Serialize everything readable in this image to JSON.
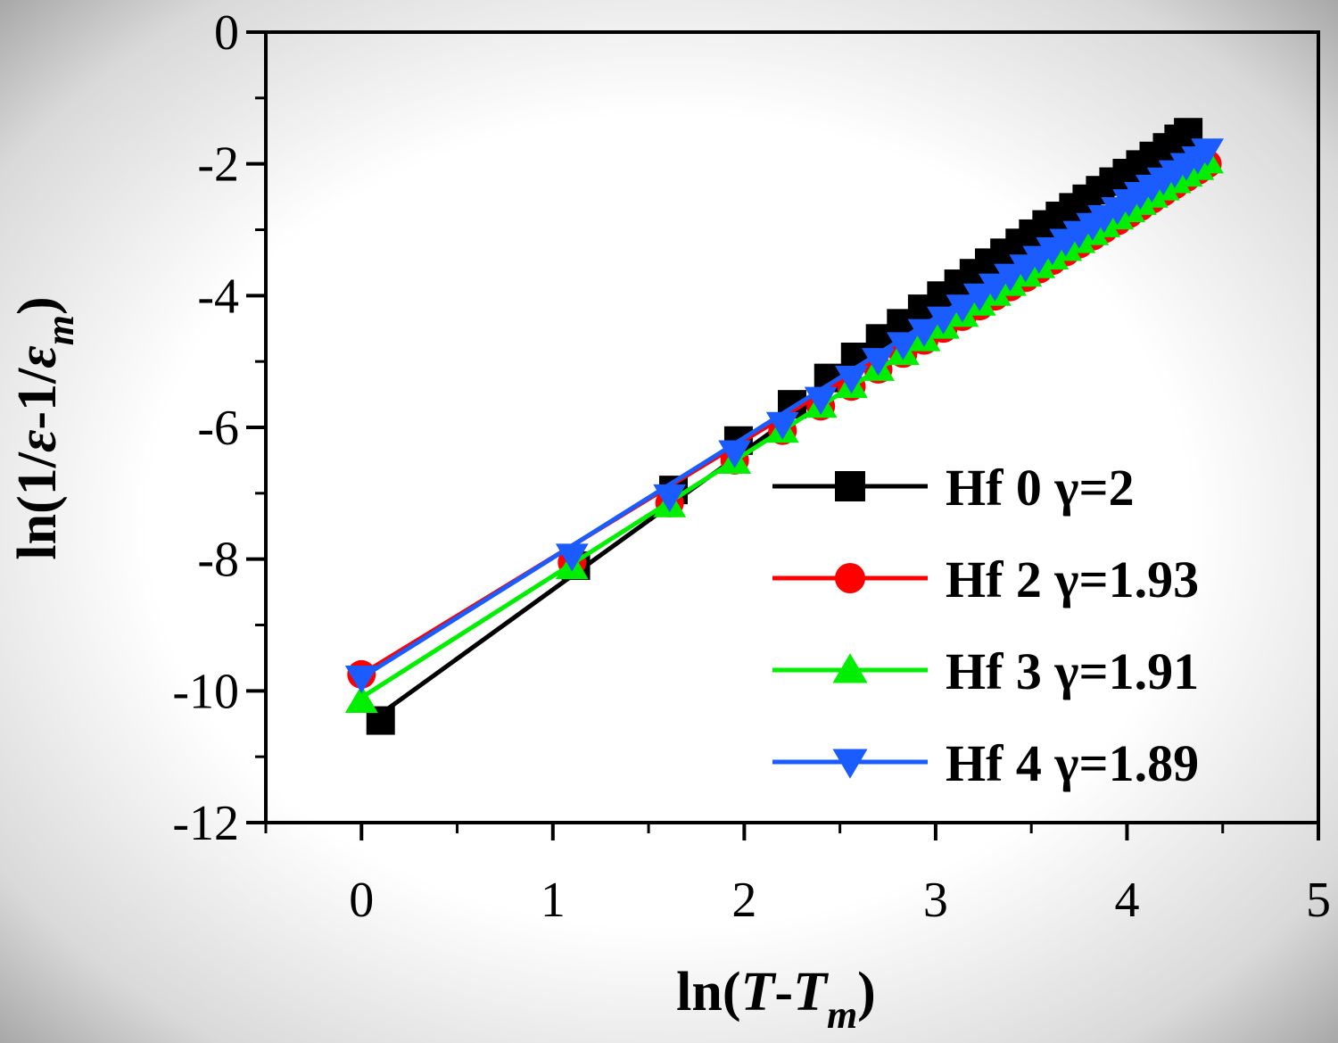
{
  "chart_data": {
    "type": "line",
    "title": "",
    "xlabel": "ln(T-Tm)",
    "ylabel": "ln(1/ε-1/εm)",
    "xlim": [
      -0.5,
      5
    ],
    "ylim": [
      -12,
      0
    ],
    "xticks": [
      0,
      1,
      2,
      3,
      4,
      5
    ],
    "yticks": [
      0,
      -2,
      -4,
      -6,
      -8,
      -10,
      -12
    ],
    "legend_position": "bottom-right",
    "series": [
      {
        "name": "Hf 0 γ=2",
        "color": "#000000",
        "marker": "square",
        "fit": [
          [
            0.1,
            -10.35
          ],
          [
            4.32,
            -1.5
          ]
        ],
        "x": [
          0.1,
          1.12,
          1.63,
          1.97,
          2.25,
          2.44,
          2.58,
          2.71,
          2.82,
          2.93,
          3.03,
          3.12,
          3.2,
          3.28,
          3.36,
          3.44,
          3.51,
          3.58,
          3.65,
          3.72,
          3.79,
          3.86,
          3.93,
          4.0,
          4.07,
          4.14,
          4.21,
          4.27,
          4.32
        ],
        "y": [
          -10.45,
          -8.1,
          -6.95,
          -6.2,
          -5.65,
          -5.25,
          -4.93,
          -4.65,
          -4.42,
          -4.2,
          -4.0,
          -3.82,
          -3.66,
          -3.5,
          -3.35,
          -3.2,
          -3.06,
          -2.92,
          -2.79,
          -2.66,
          -2.53,
          -2.4,
          -2.27,
          -2.14,
          -2.01,
          -1.88,
          -1.75,
          -1.62,
          -1.52
        ]
      },
      {
        "name": "Hf 2 γ=1.93",
        "color": "#ff0000",
        "marker": "circle",
        "fit": [
          [
            0.0,
            -9.75
          ],
          [
            4.42,
            -1.9
          ]
        ],
        "x": [
          0.0,
          1.1,
          1.61,
          1.95,
          2.2,
          2.4,
          2.56,
          2.7,
          2.83,
          2.94,
          3.04,
          3.14,
          3.23,
          3.31,
          3.39,
          3.47,
          3.54,
          3.61,
          3.68,
          3.75,
          3.82,
          3.88,
          3.95,
          4.01,
          4.07,
          4.13,
          4.19,
          4.25,
          4.31,
          4.37,
          4.42
        ],
        "y": [
          -9.75,
          -8.05,
          -7.15,
          -6.5,
          -6.05,
          -5.68,
          -5.38,
          -5.12,
          -4.88,
          -4.68,
          -4.5,
          -4.32,
          -4.16,
          -4.01,
          -3.87,
          -3.73,
          -3.6,
          -3.47,
          -3.34,
          -3.22,
          -3.1,
          -2.99,
          -2.87,
          -2.76,
          -2.65,
          -2.54,
          -2.43,
          -2.32,
          -2.21,
          -2.1,
          -2.0
        ]
      },
      {
        "name": "Hf 3 γ=1.91",
        "color": "#00ee00",
        "marker": "triangle-up",
        "fit": [
          [
            0.0,
            -10.1
          ],
          [
            4.42,
            -1.95
          ]
        ],
        "x": [
          0.0,
          1.1,
          1.61,
          1.95,
          2.2,
          2.4,
          2.56,
          2.7,
          2.83,
          2.94,
          3.04,
          3.14,
          3.23,
          3.31,
          3.39,
          3.47,
          3.54,
          3.61,
          3.68,
          3.75,
          3.82,
          3.88,
          3.95,
          4.01,
          4.07,
          4.13,
          4.19,
          4.25,
          4.31,
          4.37,
          4.42
        ],
        "y": [
          -10.15,
          -8.12,
          -7.18,
          -6.52,
          -6.05,
          -5.67,
          -5.37,
          -5.11,
          -4.87,
          -4.66,
          -4.47,
          -4.29,
          -4.12,
          -3.97,
          -3.82,
          -3.68,
          -3.55,
          -3.42,
          -3.29,
          -3.17,
          -3.05,
          -2.93,
          -2.81,
          -2.7,
          -2.59,
          -2.48,
          -2.37,
          -2.26,
          -2.16,
          -2.06,
          -1.96
        ]
      },
      {
        "name": "Hf 4 γ=1.89",
        "color": "#1a5cff",
        "marker": "triangle-down",
        "fit": [
          [
            0.0,
            -9.8
          ],
          [
            4.42,
            -1.75
          ]
        ],
        "x": [
          0.0,
          1.1,
          1.61,
          1.95,
          2.2,
          2.4,
          2.56,
          2.7,
          2.83,
          2.94,
          3.04,
          3.14,
          3.23,
          3.31,
          3.39,
          3.47,
          3.54,
          3.61,
          3.68,
          3.75,
          3.82,
          3.88,
          3.95,
          4.01,
          4.07,
          4.13,
          4.19,
          4.25,
          4.31,
          4.37,
          4.42
        ],
        "y": [
          -9.8,
          -7.95,
          -7.05,
          -6.38,
          -5.95,
          -5.57,
          -5.25,
          -4.98,
          -4.74,
          -4.54,
          -4.35,
          -4.17,
          -4.0,
          -3.85,
          -3.7,
          -3.56,
          -3.43,
          -3.3,
          -3.17,
          -3.05,
          -2.93,
          -2.81,
          -2.69,
          -2.57,
          -2.46,
          -2.35,
          -2.24,
          -2.13,
          -2.02,
          -1.92,
          -1.8
        ]
      }
    ]
  }
}
